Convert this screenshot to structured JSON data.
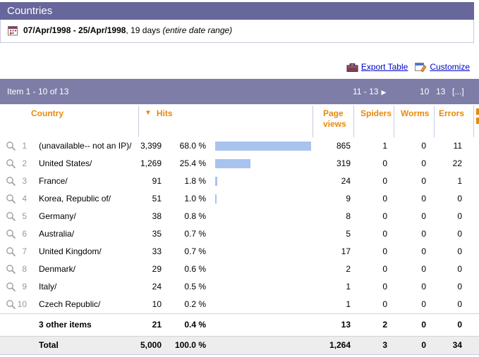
{
  "window": {
    "title": "Countries"
  },
  "date_bar": {
    "range": "07/Apr/1998 - 25/Apr/1998",
    "suffix": ", 19 days ",
    "note": "(entire date range)"
  },
  "toolbar": {
    "export_label": "Export Table",
    "customize_label": "Customize"
  },
  "pagination": {
    "status": "Item 1 - 10 of 13",
    "next_range_label": "11 - 13",
    "page_links": [
      "10",
      "13",
      "[...]"
    ]
  },
  "icons": {
    "sort_desc": "▼",
    "next_arrow": "▶"
  },
  "table": {
    "headers": {
      "country": "Country",
      "hits": "Hits",
      "page_views": "Page views",
      "spiders": "Spiders",
      "worms": "Worms",
      "errors": "Errors"
    },
    "rows": [
      {
        "rank": "1",
        "country": "(unavailable-- not an IP)/",
        "hits": "3,399",
        "hits_pct": "68.0 %",
        "pct_value": 68.0,
        "page_views": "865",
        "spiders": "1",
        "worms": "0",
        "errors": "11"
      },
      {
        "rank": "2",
        "country": "United States/",
        "hits": "1,269",
        "hits_pct": "25.4 %",
        "pct_value": 25.4,
        "page_views": "319",
        "spiders": "0",
        "worms": "0",
        "errors": "22"
      },
      {
        "rank": "3",
        "country": "France/",
        "hits": "91",
        "hits_pct": "1.8 %",
        "pct_value": 1.8,
        "page_views": "24",
        "spiders": "0",
        "worms": "0",
        "errors": "1"
      },
      {
        "rank": "4",
        "country": "Korea, Republic of/",
        "hits": "51",
        "hits_pct": "1.0 %",
        "pct_value": 1.0,
        "page_views": "9",
        "spiders": "0",
        "worms": "0",
        "errors": "0"
      },
      {
        "rank": "5",
        "country": "Germany/",
        "hits": "38",
        "hits_pct": "0.8 %",
        "pct_value": 0.8,
        "page_views": "8",
        "spiders": "0",
        "worms": "0",
        "errors": "0"
      },
      {
        "rank": "6",
        "country": "Australia/",
        "hits": "35",
        "hits_pct": "0.7 %",
        "pct_value": 0.7,
        "page_views": "5",
        "spiders": "0",
        "worms": "0",
        "errors": "0"
      },
      {
        "rank": "7",
        "country": "United Kingdom/",
        "hits": "33",
        "hits_pct": "0.7 %",
        "pct_value": 0.7,
        "page_views": "17",
        "spiders": "0",
        "worms": "0",
        "errors": "0"
      },
      {
        "rank": "8",
        "country": "Denmark/",
        "hits": "29",
        "hits_pct": "0.6 %",
        "pct_value": 0.6,
        "page_views": "2",
        "spiders": "0",
        "worms": "0",
        "errors": "0"
      },
      {
        "rank": "9",
        "country": "Italy/",
        "hits": "24",
        "hits_pct": "0.5 %",
        "pct_value": 0.5,
        "page_views": "1",
        "spiders": "0",
        "worms": "0",
        "errors": "0"
      },
      {
        "rank": "10",
        "country": "Czech Republic/",
        "hits": "10",
        "hits_pct": "0.2 %",
        "pct_value": 0.2,
        "page_views": "1",
        "spiders": "0",
        "worms": "0",
        "errors": "0"
      }
    ],
    "other_row": {
      "label": "3 other items",
      "hits": "21",
      "hits_pct": "0.4 %",
      "page_views": "13",
      "spiders": "2",
      "worms": "0",
      "errors": "0"
    },
    "total_row": {
      "label": "Total",
      "hits": "5,000",
      "hits_pct": "100.0 %",
      "page_views": "1,264",
      "spiders": "3",
      "worms": "0",
      "errors": "34"
    }
  },
  "colors": {
    "title_bar": "#67679c",
    "pagination_bar": "#7d7da8",
    "header_text": "#e8890a",
    "link": "#0000cc",
    "bar_fill": "#a9c3ef",
    "divider": "#c6cce2",
    "total_row_bg": "#ededed"
  }
}
